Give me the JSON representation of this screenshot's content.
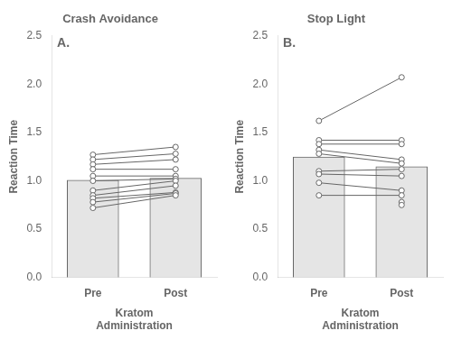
{
  "chart_data": [
    {
      "type": "bar",
      "title": "Crash Avoidance",
      "annotation": "A.",
      "categories": [
        "Pre",
        "Post"
      ],
      "values": [
        1.01,
        1.03
      ],
      "pre_values": [
        1.27,
        1.22,
        1.17,
        1.12,
        1.05,
        1.0,
        0.9,
        0.85,
        0.82,
        0.78,
        0.72
      ],
      "post_values": [
        1.35,
        1.28,
        1.22,
        1.12,
        1.05,
        1.02,
        1.0,
        0.95,
        0.88,
        0.87,
        0.85
      ],
      "xlabel": "Kratom\nAdministration",
      "ylabel": "Reaction Time",
      "ylim": [
        0,
        2.5
      ],
      "yticks": [
        {
          "value": 0,
          "label": "0.0"
        },
        0.5,
        {
          "value": 1,
          "label": "1.0"
        },
        1.5,
        {
          "value": 2,
          "label": "2.0"
        },
        2.5
      ],
      "grid": false
    },
    {
      "type": "bar",
      "title": "Stop Light",
      "annotation": "B.",
      "categories": [
        "Pre",
        "Post"
      ],
      "values": [
        1.25,
        1.15
      ],
      "pre_values": [
        1.62,
        1.42,
        1.38,
        1.32,
        1.28,
        1.1,
        1.07,
        0.98,
        0.85
      ],
      "post_values": [
        2.07,
        1.42,
        1.38,
        1.22,
        1.18,
        1.12,
        1.05,
        0.9,
        0.85,
        0.78,
        0.75
      ],
      "xlabel": "Kratom\nAdministration",
      "ylabel": "Reaction Time",
      "ylim": [
        0,
        2.5
      ],
      "yticks": [
        {
          "value": 0,
          "label": "0.0"
        },
        0.5,
        {
          "value": 1,
          "label": "1.0"
        },
        1.5,
        {
          "value": 2,
          "label": "2.0"
        },
        2.5
      ],
      "grid": false
    }
  ]
}
